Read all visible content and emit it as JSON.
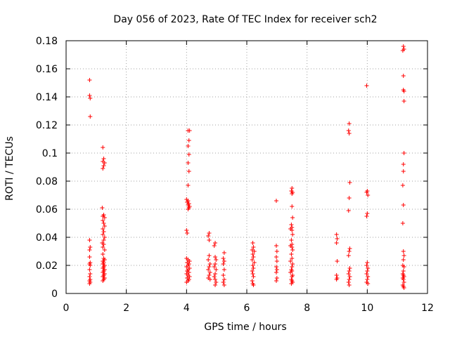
{
  "chart_data": {
    "type": "scatter",
    "title": "Day 056 of 2023, Rate Of TEC Index for receiver sch2",
    "xlabel": "GPS time / hours",
    "ylabel": "ROTI / TECUs",
    "xlim": [
      0,
      12
    ],
    "ylim": [
      0,
      0.18
    ],
    "xticks": [
      "0",
      "2",
      "4",
      "6",
      "8",
      "10",
      "12"
    ],
    "yticks": [
      "0",
      "0.02",
      "0.04",
      "0.06",
      "0.08",
      "0.1",
      "0.12",
      "0.14",
      "0.16",
      "0.18"
    ],
    "grid": true,
    "marker": "+",
    "color": "#ff0000",
    "series": [
      {
        "points": [
          [
            0.78,
            0.152
          ],
          [
            0.78,
            0.141
          ],
          [
            0.8,
            0.139
          ],
          [
            0.8,
            0.126
          ],
          [
            0.78,
            0.038
          ],
          [
            0.8,
            0.033
          ],
          [
            0.78,
            0.031
          ],
          [
            0.78,
            0.026
          ],
          [
            0.8,
            0.022
          ],
          [
            0.78,
            0.021
          ],
          [
            0.8,
            0.02
          ],
          [
            0.78,
            0.017
          ],
          [
            0.8,
            0.014
          ],
          [
            0.78,
            0.012
          ],
          [
            0.8,
            0.01
          ],
          [
            0.78,
            0.009
          ],
          [
            0.8,
            0.008
          ],
          [
            0.78,
            0.007
          ],
          [
            1.22,
            0.104
          ],
          [
            1.25,
            0.096
          ],
          [
            1.22,
            0.094
          ],
          [
            1.28,
            0.093
          ],
          [
            1.25,
            0.091
          ],
          [
            1.22,
            0.089
          ],
          [
            1.2,
            0.061
          ],
          [
            1.25,
            0.056
          ],
          [
            1.22,
            0.055
          ],
          [
            1.28,
            0.054
          ],
          [
            1.22,
            0.052
          ],
          [
            1.25,
            0.05
          ],
          [
            1.28,
            0.048
          ],
          [
            1.22,
            0.046
          ],
          [
            1.25,
            0.044
          ],
          [
            1.22,
            0.042
          ],
          [
            1.28,
            0.04
          ],
          [
            1.25,
            0.038
          ],
          [
            1.2,
            0.036
          ],
          [
            1.25,
            0.035
          ],
          [
            1.22,
            0.033
          ],
          [
            1.28,
            0.031
          ],
          [
            1.22,
            0.028
          ],
          [
            1.25,
            0.025
          ],
          [
            1.28,
            0.024
          ],
          [
            1.22,
            0.023
          ],
          [
            1.25,
            0.022
          ],
          [
            1.22,
            0.021
          ],
          [
            1.28,
            0.02
          ],
          [
            1.25,
            0.019
          ],
          [
            1.22,
            0.018
          ],
          [
            1.28,
            0.017
          ],
          [
            1.25,
            0.016
          ],
          [
            1.22,
            0.015
          ],
          [
            1.28,
            0.014
          ],
          [
            1.25,
            0.013
          ],
          [
            1.22,
            0.012
          ],
          [
            1.28,
            0.011
          ],
          [
            1.25,
            0.01
          ],
          [
            1.22,
            0.009
          ],
          [
            4.05,
            0.116
          ],
          [
            4.1,
            0.116
          ],
          [
            4.08,
            0.109
          ],
          [
            4.05,
            0.105
          ],
          [
            4.08,
            0.099
          ],
          [
            4.05,
            0.093
          ],
          [
            4.08,
            0.087
          ],
          [
            4.05,
            0.077
          ],
          [
            4.0,
            0.067
          ],
          [
            4.05,
            0.066
          ],
          [
            4.02,
            0.065
          ],
          [
            4.08,
            0.064
          ],
          [
            4.05,
            0.063
          ],
          [
            4.1,
            0.062
          ],
          [
            4.08,
            0.061
          ],
          [
            4.05,
            0.06
          ],
          [
            4.0,
            0.045
          ],
          [
            4.02,
            0.043
          ],
          [
            4.0,
            0.025
          ],
          [
            4.05,
            0.024
          ],
          [
            4.1,
            0.023
          ],
          [
            4.02,
            0.022
          ],
          [
            4.08,
            0.021
          ],
          [
            4.05,
            0.02
          ],
          [
            4.0,
            0.019
          ],
          [
            4.1,
            0.018
          ],
          [
            4.05,
            0.017
          ],
          [
            4.02,
            0.016
          ],
          [
            4.08,
            0.015
          ],
          [
            4.0,
            0.014
          ],
          [
            4.05,
            0.013
          ],
          [
            4.1,
            0.012
          ],
          [
            4.02,
            0.011
          ],
          [
            4.08,
            0.01
          ],
          [
            4.05,
            0.009
          ],
          [
            4.0,
            0.008
          ],
          [
            4.75,
            0.043
          ],
          [
            4.72,
            0.041
          ],
          [
            4.75,
            0.038
          ],
          [
            4.75,
            0.027
          ],
          [
            4.72,
            0.024
          ],
          [
            4.78,
            0.021
          ],
          [
            4.75,
            0.019
          ],
          [
            4.72,
            0.017
          ],
          [
            4.78,
            0.015
          ],
          [
            4.75,
            0.013
          ],
          [
            4.72,
            0.011
          ],
          [
            4.78,
            0.01
          ],
          [
            4.95,
            0.036
          ],
          [
            4.92,
            0.034
          ],
          [
            4.95,
            0.026
          ],
          [
            4.98,
            0.024
          ],
          [
            4.95,
            0.021
          ],
          [
            4.92,
            0.019
          ],
          [
            4.98,
            0.017
          ],
          [
            4.95,
            0.014
          ],
          [
            4.92,
            0.012
          ],
          [
            4.95,
            0.01
          ],
          [
            4.98,
            0.008
          ],
          [
            4.95,
            0.006
          ],
          [
            5.25,
            0.029
          ],
          [
            5.22,
            0.025
          ],
          [
            5.25,
            0.023
          ],
          [
            5.22,
            0.021
          ],
          [
            5.25,
            0.017
          ],
          [
            5.22,
            0.013
          ],
          [
            5.25,
            0.01
          ],
          [
            5.22,
            0.008
          ],
          [
            5.25,
            0.006
          ],
          [
            6.2,
            0.036
          ],
          [
            6.22,
            0.033
          ],
          [
            6.18,
            0.031
          ],
          [
            6.25,
            0.03
          ],
          [
            6.2,
            0.028
          ],
          [
            6.22,
            0.026
          ],
          [
            6.18,
            0.024
          ],
          [
            6.25,
            0.022
          ],
          [
            6.2,
            0.02
          ],
          [
            6.22,
            0.018
          ],
          [
            6.18,
            0.016
          ],
          [
            6.2,
            0.014
          ],
          [
            6.22,
            0.012
          ],
          [
            6.18,
            0.009
          ],
          [
            6.2,
            0.007
          ],
          [
            6.22,
            0.006
          ],
          [
            6.98,
            0.066
          ],
          [
            6.98,
            0.034
          ],
          [
            7.0,
            0.03
          ],
          [
            6.98,
            0.026
          ],
          [
            7.0,
            0.023
          ],
          [
            6.98,
            0.019
          ],
          [
            7.0,
            0.017
          ],
          [
            6.98,
            0.015
          ],
          [
            7.0,
            0.011
          ],
          [
            6.98,
            0.009
          ],
          [
            7.5,
            0.075
          ],
          [
            7.48,
            0.073
          ],
          [
            7.52,
            0.072
          ],
          [
            7.5,
            0.071
          ],
          [
            7.5,
            0.062
          ],
          [
            7.52,
            0.054
          ],
          [
            7.48,
            0.049
          ],
          [
            7.5,
            0.047
          ],
          [
            7.45,
            0.046
          ],
          [
            7.5,
            0.045
          ],
          [
            7.52,
            0.042
          ],
          [
            7.48,
            0.038
          ],
          [
            7.5,
            0.035
          ],
          [
            7.45,
            0.034
          ],
          [
            7.5,
            0.033
          ],
          [
            7.52,
            0.031
          ],
          [
            7.48,
            0.028
          ],
          [
            7.5,
            0.025
          ],
          [
            7.45,
            0.023
          ],
          [
            7.52,
            0.021
          ],
          [
            7.5,
            0.019
          ],
          [
            7.48,
            0.017
          ],
          [
            7.5,
            0.016
          ],
          [
            7.45,
            0.015
          ],
          [
            7.52,
            0.013
          ],
          [
            7.5,
            0.012
          ],
          [
            7.48,
            0.01
          ],
          [
            7.5,
            0.009
          ],
          [
            7.52,
            0.008
          ],
          [
            7.48,
            0.007
          ],
          [
            8.98,
            0.042
          ],
          [
            9.0,
            0.039
          ],
          [
            8.98,
            0.036
          ],
          [
            9.0,
            0.023
          ],
          [
            8.98,
            0.013
          ],
          [
            9.0,
            0.011
          ],
          [
            8.98,
            0.01
          ],
          [
            9.4,
            0.121
          ],
          [
            9.38,
            0.116
          ],
          [
            9.4,
            0.114
          ],
          [
            9.42,
            0.079
          ],
          [
            9.4,
            0.068
          ],
          [
            9.38,
            0.059
          ],
          [
            9.42,
            0.032
          ],
          [
            9.4,
            0.03
          ],
          [
            9.38,
            0.027
          ],
          [
            9.42,
            0.018
          ],
          [
            9.4,
            0.016
          ],
          [
            9.38,
            0.014
          ],
          [
            9.42,
            0.012
          ],
          [
            9.4,
            0.01
          ],
          [
            9.38,
            0.008
          ],
          [
            9.4,
            0.006
          ],
          [
            9.98,
            0.148
          ],
          [
            10.0,
            0.073
          ],
          [
            9.98,
            0.072
          ],
          [
            10.02,
            0.07
          ],
          [
            10.0,
            0.057
          ],
          [
            9.98,
            0.055
          ],
          [
            10.0,
            0.022
          ],
          [
            9.98,
            0.02
          ],
          [
            10.02,
            0.018
          ],
          [
            10.0,
            0.016
          ],
          [
            9.98,
            0.014
          ],
          [
            10.02,
            0.012
          ],
          [
            10.0,
            0.01
          ],
          [
            9.98,
            0.008
          ],
          [
            10.02,
            0.007
          ],
          [
            11.2,
            0.176
          ],
          [
            11.22,
            0.174
          ],
          [
            11.18,
            0.173
          ],
          [
            11.2,
            0.155
          ],
          [
            11.2,
            0.145
          ],
          [
            11.22,
            0.144
          ],
          [
            11.22,
            0.137
          ],
          [
            11.22,
            0.1
          ],
          [
            11.2,
            0.092
          ],
          [
            11.2,
            0.087
          ],
          [
            11.18,
            0.077
          ],
          [
            11.2,
            0.063
          ],
          [
            11.18,
            0.05
          ],
          [
            11.2,
            0.03
          ],
          [
            11.22,
            0.027
          ],
          [
            11.2,
            0.024
          ],
          [
            11.18,
            0.02
          ],
          [
            11.22,
            0.019
          ],
          [
            11.2,
            0.016
          ],
          [
            11.18,
            0.014
          ],
          [
            11.2,
            0.013
          ],
          [
            11.22,
            0.012
          ],
          [
            11.18,
            0.011
          ],
          [
            11.2,
            0.01
          ],
          [
            11.22,
            0.008
          ],
          [
            11.18,
            0.006
          ],
          [
            11.2,
            0.005
          ],
          [
            11.22,
            0.004
          ]
        ]
      }
    ]
  }
}
